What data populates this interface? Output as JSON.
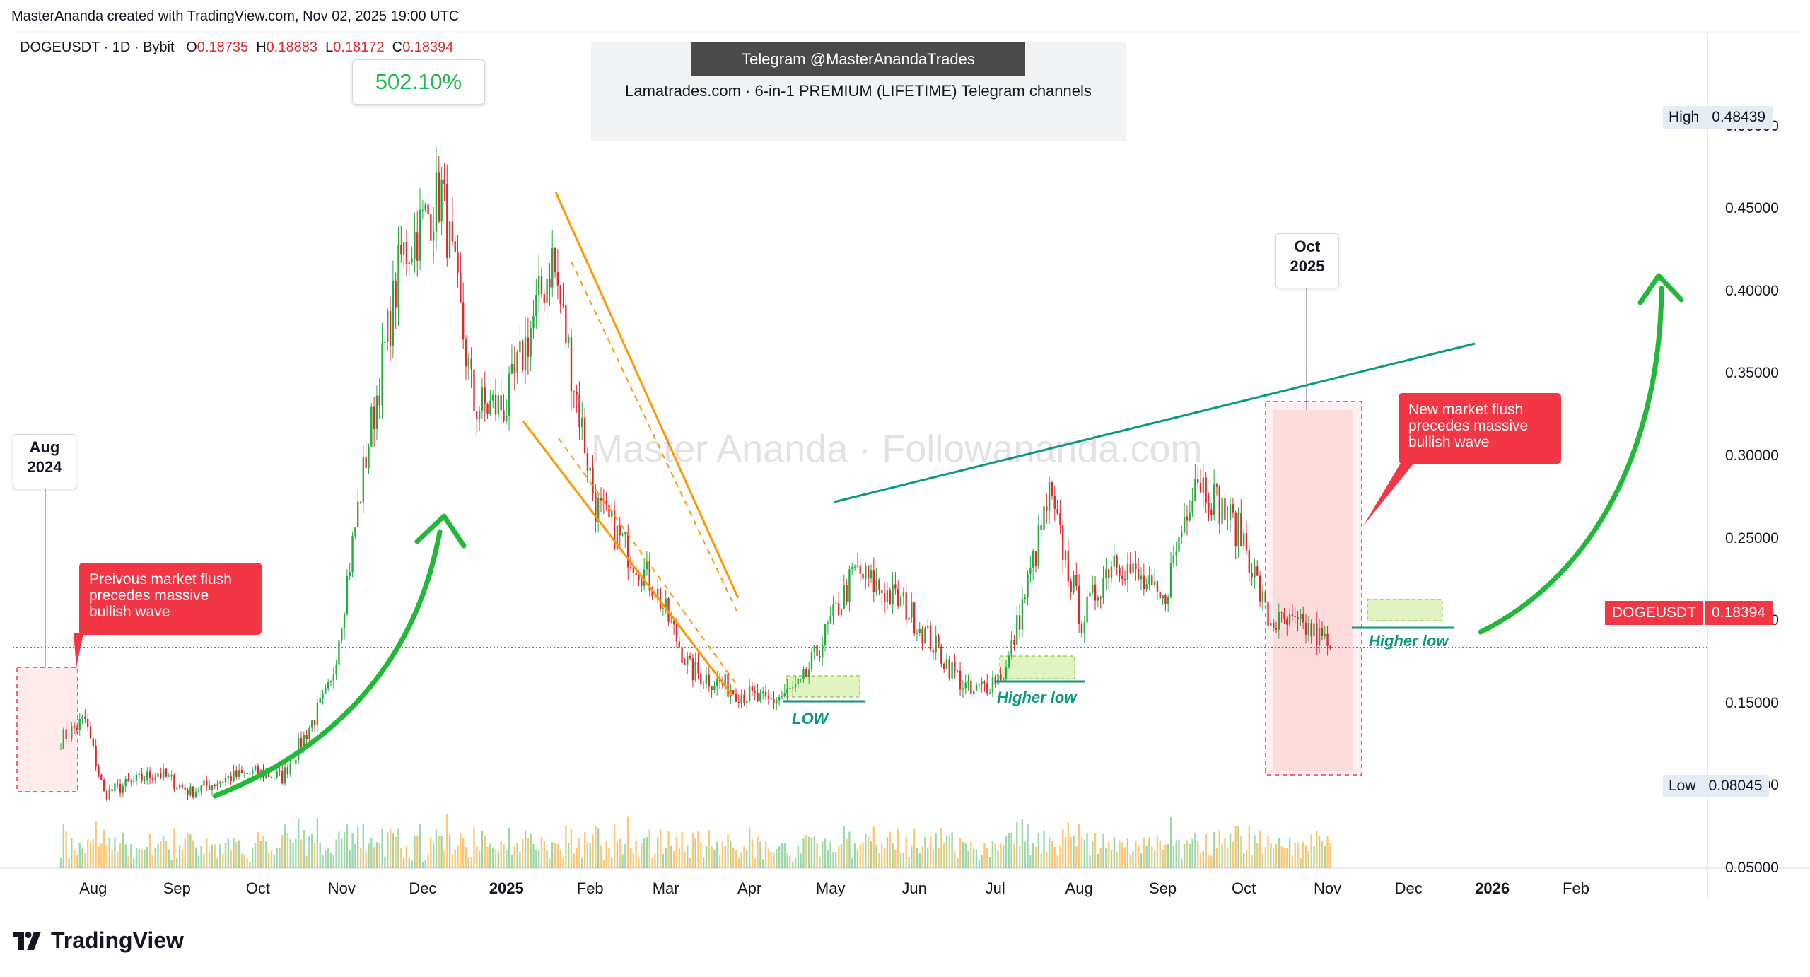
{
  "header": {
    "credit": "MasterAnanda created with TradingView.com, Nov 02, 2025 19:00 UTC"
  },
  "symbol_line": {
    "symbol": "DOGEUSDT · 1D · Bybit",
    "open_label": "O",
    "open": "0.18735",
    "high_label": "H",
    "high": "0.18883",
    "low_label": "L",
    "low": "0.18172",
    "close_label": "C",
    "close": "0.18394"
  },
  "promo": {
    "telegram": "Telegram @MasterAnandaTrades",
    "subtitle": "Lamatrades.com · 6-in-1 PREMIUM (LIFETIME) Telegram channels"
  },
  "watermark": "Master Ananda · Followananda.com",
  "annotations": {
    "percent_gain": "502.10%",
    "aug_2024": [
      "Aug",
      "2024"
    ],
    "oct_2025": [
      "Oct",
      "2025"
    ],
    "callout_left": [
      "Preivous market flush",
      "precedes massive",
      "bullish wave"
    ],
    "callout_right": [
      "New market flush",
      "precedes massive",
      "bullish wave"
    ],
    "low_label": "LOW",
    "higher_low_1": "Higher low",
    "higher_low_2": "Higher low"
  },
  "price_axis": {
    "labels": [
      "0.50000",
      "0.45000",
      "0.40000",
      "0.35000",
      "0.30000",
      "0.25000",
      "0.20000",
      "0.15000",
      "0.10000",
      "0.05000"
    ],
    "high_key": "High",
    "high_value": "0.48439",
    "low_key": "Low",
    "low_value": "0.08045",
    "current_symbol": "DOGEUSDT",
    "current_value": "0.18394"
  },
  "time_axis": {
    "labels": [
      "Aug",
      "Sep",
      "Oct",
      "Nov",
      "Dec",
      "2025",
      "Feb",
      "Mar",
      "Apr",
      "May",
      "Jun",
      "Jul",
      "Aug",
      "Sep",
      "Oct",
      "Nov",
      "Dec",
      "2026",
      "Feb"
    ]
  },
  "branding": {
    "name": "TradingView"
  },
  "colors": {
    "up": "#089981",
    "up_candle": "#22ab3f",
    "down": "#e0282e",
    "accent_orange": "#ff9800",
    "trendline": "#089981",
    "arrow": "#22b83a",
    "callout": "#f23645"
  },
  "chart_data": {
    "type": "candlestick",
    "symbol": "DOGEUSDT",
    "interval": "1D",
    "exchange": "Bybit",
    "ylim": [
      0.04,
      0.53
    ],
    "y_ticks": [
      0.05,
      0.1,
      0.15,
      0.2,
      0.25,
      0.3,
      0.35,
      0.4,
      0.45,
      0.5
    ],
    "x_range": [
      "2024-07-20",
      "2026-02-25"
    ],
    "high": 0.48439,
    "low": 0.08045,
    "last_close": 0.18394,
    "approx_closes": [
      {
        "date": "2024-07-20",
        "close": 0.128
      },
      {
        "date": "2024-07-29",
        "close": 0.14
      },
      {
        "date": "2024-08-05",
        "close": 0.095
      },
      {
        "date": "2024-08-25",
        "close": 0.108
      },
      {
        "date": "2024-09-06",
        "close": 0.096
      },
      {
        "date": "2024-09-20",
        "close": 0.105
      },
      {
        "date": "2024-10-01",
        "close": 0.108
      },
      {
        "date": "2024-10-10",
        "close": 0.105
      },
      {
        "date": "2024-10-28",
        "close": 0.16
      },
      {
        "date": "2024-11-10",
        "close": 0.3
      },
      {
        "date": "2024-11-23",
        "close": 0.42
      },
      {
        "date": "2024-12-08",
        "close": 0.46
      },
      {
        "date": "2024-12-20",
        "close": 0.33
      },
      {
        "date": "2025-01-01",
        "close": 0.33
      },
      {
        "date": "2025-01-18",
        "close": 0.42
      },
      {
        "date": "2025-02-03",
        "close": 0.27
      },
      {
        "date": "2025-02-25",
        "close": 0.22
      },
      {
        "date": "2025-03-10",
        "close": 0.17
      },
      {
        "date": "2025-04-07",
        "close": 0.15
      },
      {
        "date": "2025-04-20",
        "close": 0.16
      },
      {
        "date": "2025-05-10",
        "close": 0.23
      },
      {
        "date": "2025-05-28",
        "close": 0.21
      },
      {
        "date": "2025-06-22",
        "close": 0.155
      },
      {
        "date": "2025-07-05",
        "close": 0.17
      },
      {
        "date": "2025-07-21",
        "close": 0.275
      },
      {
        "date": "2025-08-02",
        "close": 0.2
      },
      {
        "date": "2025-08-14",
        "close": 0.24
      },
      {
        "date": "2025-09-01",
        "close": 0.21
      },
      {
        "date": "2025-09-13",
        "close": 0.29
      },
      {
        "date": "2025-10-01",
        "close": 0.25
      },
      {
        "date": "2025-10-10",
        "close": 0.2
      },
      {
        "date": "2025-10-25",
        "close": 0.195
      },
      {
        "date": "2025-11-02",
        "close": 0.18394
      }
    ]
  }
}
